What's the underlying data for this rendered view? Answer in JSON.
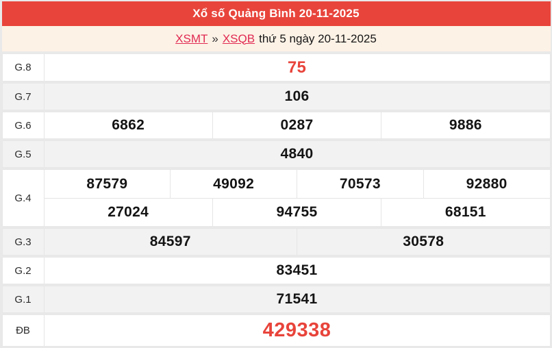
{
  "header": {
    "title": "Xổ số Quảng Bình 20-11-2025"
  },
  "breadcrumb": {
    "link_xsmt": "XSMT",
    "separator": "»",
    "link_xsqb": "XSQB",
    "suffix": "thứ 5 ngày 20-11-2025"
  },
  "colors": {
    "header_bg": "#e8443b",
    "highlight_number": "#e8443b",
    "breadcrumb_bg": "#fdf2e6",
    "link": "#e02a52",
    "row_alt_bg": "#f2f2f2",
    "border": "#e5e5e5",
    "page_bg": "#e9e9e9"
  },
  "table": {
    "rows": [
      {
        "label": "G.8",
        "lines": [
          [
            "75"
          ]
        ],
        "highlight": true
      },
      {
        "label": "G.7",
        "lines": [
          [
            "106"
          ]
        ]
      },
      {
        "label": "G.6",
        "lines": [
          [
            "6862",
            "0287",
            "9886"
          ]
        ]
      },
      {
        "label": "G.5",
        "lines": [
          [
            "4840"
          ]
        ]
      },
      {
        "label": "G.4",
        "lines": [
          [
            "87579",
            "49092",
            "70573",
            "92880"
          ],
          [
            "27024",
            "94755",
            "68151"
          ]
        ]
      },
      {
        "label": "G.3",
        "lines": [
          [
            "84597",
            "30578"
          ]
        ]
      },
      {
        "label": "G.2",
        "lines": [
          [
            "83451"
          ]
        ]
      },
      {
        "label": "G.1",
        "lines": [
          [
            "71541"
          ]
        ]
      },
      {
        "label": "ĐB",
        "lines": [
          [
            "429338"
          ]
        ],
        "highlight": true
      }
    ]
  }
}
